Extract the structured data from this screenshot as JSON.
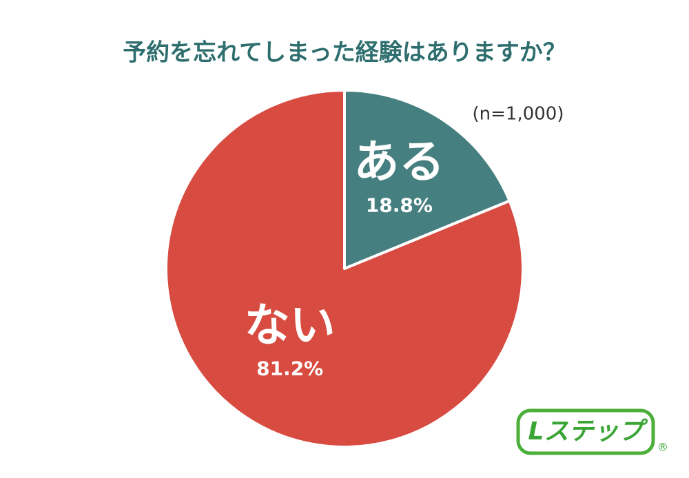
{
  "chart_data": {
    "type": "pie",
    "title": "予約を忘れてしまった経験はありますか？",
    "subtitle": "(n=1,000)",
    "categories": [
      "ある",
      "ない"
    ],
    "values": [
      18.8,
      81.2
    ],
    "value_labels": [
      "18.8%",
      "81.2%"
    ],
    "colors": [
      "#467f7f",
      "#d84b41"
    ]
  },
  "logo": {
    "text": "Lステップ",
    "mark": "®"
  }
}
